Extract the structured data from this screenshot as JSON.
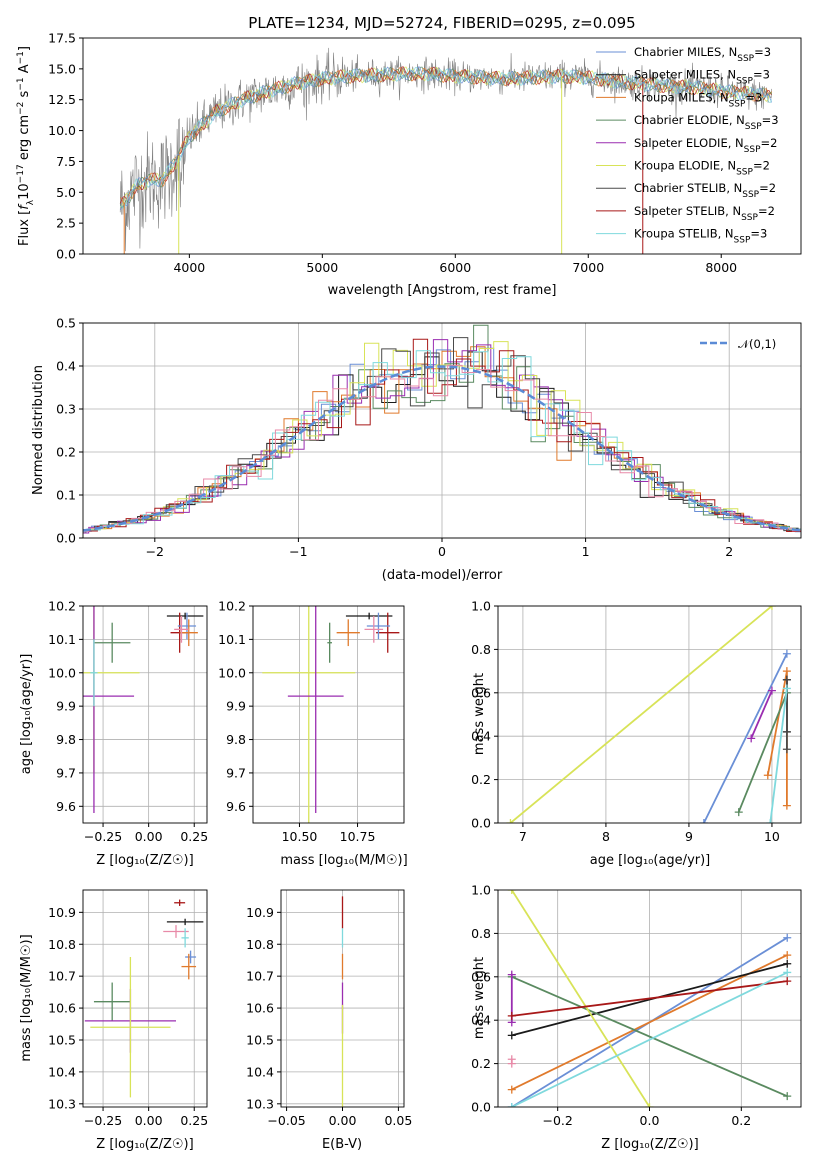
{
  "colors": {
    "Chabrier MILES": "#6a8fd6",
    "Salpeter MILES": "#1a1a1a",
    "Kroupa MILES": "#e07a2c",
    "Chabrier ELODIE": "#5a8a60",
    "Salpeter ELODIE": "#9a2db0",
    "Kroupa ELODIE": "#d8e358",
    "Chabrier STELIB": "#4a4a4a",
    "Salpeter STELIB": "#a81818",
    "Kroupa STELIB": "#7fd9dd",
    "data": "#808080",
    "gauss": "#5b8bd6",
    "pink": "#e88aa8"
  },
  "chart_data": [
    {
      "id": "spectrum",
      "type": "line",
      "title": "PLATE=1234, MJD=52724, FIBERID=0295, z=0.095",
      "xlabel": "wavelength [Angstrom, rest frame]",
      "ylabel": "Flux [f_λ 10^-17 erg cm^-2 s^-1 A^-1]",
      "xlim": [
        3200,
        8600
      ],
      "ylim": [
        0,
        17.5
      ],
      "xticks": [
        "4000",
        "5000",
        "6000",
        "7000",
        "8000"
      ],
      "yticks": [
        "0.0",
        "2.5",
        "5.0",
        "7.5",
        "10.0",
        "12.5",
        "15.0",
        "17.5"
      ],
      "legend": [
        "Chabrier MILES, N_SSP=3",
        "Salpeter MILES, N_SSP=3",
        "Kroupa MILES, N_SSP=3",
        "Chabrier ELODIE, N_SSP=3",
        "Salpeter ELODIE, N_SSP=2",
        "Kroupa ELODIE, N_SSP=2",
        "Chabrier STELIB, N_SSP=2",
        "Salpeter STELIB, N_SSP=2",
        "Kroupa STELIB, N_SSP=3"
      ],
      "legend_placement": "right",
      "continuum": {
        "x": [
          3500,
          3600,
          3700,
          3800,
          3900,
          4000,
          4100,
          4200,
          4300,
          4400,
          4600,
          4800,
          5000,
          5200,
          5400,
          5600,
          5800,
          6000,
          6200,
          6400,
          6600,
          6800,
          7000,
          7200,
          7400,
          7600,
          7800,
          8000,
          8200,
          8400
        ],
        "y": [
          4.0,
          5.5,
          6.0,
          6.0,
          7.5,
          9.5,
          10.5,
          11.5,
          12.0,
          12.5,
          13.2,
          13.8,
          14.2,
          14.4,
          14.5,
          14.6,
          14.6,
          14.4,
          14.3,
          14.2,
          14.3,
          14.4,
          14.3,
          14.0,
          13.8,
          13.6,
          13.5,
          13.2,
          13.0,
          12.8
        ]
      }
    },
    {
      "id": "residuals",
      "type": "histogram",
      "xlabel": "(data-model)/error",
      "ylabel": "Normed distribution",
      "xlim": [
        -2.5,
        2.5
      ],
      "ylim": [
        0,
        0.5
      ],
      "xticks": [
        "−2",
        "−1",
        "0",
        "1",
        "2"
      ],
      "yticks": [
        "0.0",
        "0.1",
        "0.2",
        "0.3",
        "0.4",
        "0.5"
      ],
      "legend": "𝒩(0,1)",
      "legend_placement": "top-right",
      "grid": true
    },
    {
      "id": "age-vs-Z",
      "type": "scatter",
      "xlabel": "Z [log₁₀(Z/Z☉)]",
      "ylabel": "age  [log₁₀(age/yr)]",
      "xlim": [
        -0.36,
        0.32
      ],
      "ylim": [
        9.55,
        10.2
      ],
      "xticks": [
        "−0.25",
        "0.00",
        "0.25"
      ],
      "yticks": [
        "9.6",
        "9.7",
        "9.8",
        "9.9",
        "10.0",
        "10.1",
        "10.2"
      ],
      "grid": true,
      "points": [
        {
          "c": "Salpeter MILES",
          "x": 0.2,
          "y": 10.17,
          "xe": 0.1,
          "ye": 0.01
        },
        {
          "c": "Salpeter STELIB",
          "x": 0.17,
          "y": 10.12,
          "xe": 0.05,
          "ye": 0.06
        },
        {
          "c": "Chabrier MILES",
          "x": 0.21,
          "y": 10.14,
          "xe": 0.05,
          "ye": 0.04
        },
        {
          "c": "Kroupa MILES",
          "x": 0.22,
          "y": 10.12,
          "xe": 0.05,
          "ye": 0.04
        },
        {
          "c": "pink",
          "x": 0.18,
          "y": 10.13,
          "xe": 0.04,
          "ye": 0.04
        },
        {
          "c": "Chabrier ELODIE",
          "x": -0.2,
          "y": 10.09,
          "xe": 0.1,
          "ye": 0.06
        },
        {
          "c": "Kroupa ELODIE",
          "x": -0.3,
          "y": 10.0,
          "xe": 0.25,
          "ye": 0.3
        },
        {
          "c": "Salpeter ELODIE",
          "x": -0.3,
          "y": 9.93,
          "xe": 0.22,
          "ye": 0.35
        },
        {
          "c": "Kroupa STELIB",
          "x": -0.3,
          "y": 10.0,
          "xe": 0.02,
          "ye": 0.1
        }
      ]
    },
    {
      "id": "age-vs-mass",
      "type": "scatter",
      "xlabel": "mass [log₁₀(M/M☉)]",
      "xlim": [
        10.3,
        10.95
      ],
      "ylim": [
        9.55,
        10.2
      ],
      "xticks": [
        "10.50",
        "10.75"
      ],
      "yticks": [
        "9.6",
        "9.7",
        "9.8",
        "9.9",
        "10.0",
        "10.1",
        "10.2"
      ],
      "grid": true,
      "points": [
        {
          "c": "Salpeter MILES",
          "x": 10.8,
          "y": 10.17,
          "xe": 0.1,
          "ye": 0.01
        },
        {
          "c": "Salpeter STELIB",
          "x": 10.88,
          "y": 10.12,
          "xe": 0.05,
          "ye": 0.06
        },
        {
          "c": "Chabrier MILES",
          "x": 10.84,
          "y": 10.14,
          "xe": 0.05,
          "ye": 0.04
        },
        {
          "c": "Kroupa MILES",
          "x": 10.71,
          "y": 10.12,
          "xe": 0.05,
          "ye": 0.04
        },
        {
          "c": "pink",
          "x": 10.82,
          "y": 10.13,
          "xe": 0.04,
          "ye": 0.04
        },
        {
          "c": "Chabrier ELODIE",
          "x": 10.63,
          "y": 10.09,
          "xe": 0.01,
          "ye": 0.06
        },
        {
          "c": "Kroupa ELODIE",
          "x": 10.54,
          "y": 10.0,
          "xe": 0.2,
          "ye": 0.45
        },
        {
          "c": "Salpeter ELODIE",
          "x": 10.57,
          "y": 9.93,
          "xe": 0.12,
          "ye": 0.35
        }
      ]
    },
    {
      "id": "weight-vs-age",
      "type": "line",
      "xlabel": "age  [log₁₀(age/yr)]",
      "ylabel": "mass weight",
      "xlim": [
        6.7,
        10.35
      ],
      "ylim": [
        0,
        1
      ],
      "xticks": [
        "7",
        "8",
        "9",
        "10"
      ],
      "yticks": [
        "0.0",
        "0.2",
        "0.4",
        "0.6",
        "0.8",
        "1.0"
      ],
      "grid": true,
      "series": [
        {
          "c": "Chabrier MILES",
          "x": [
            9.18,
            10.18
          ],
          "y": [
            0.0,
            0.78
          ]
        },
        {
          "c": "Kroupa MILES",
          "x": [
            9.95,
            10.18,
            10.18
          ],
          "y": [
            0.22,
            0.7,
            0.08
          ]
        },
        {
          "c": "Salpeter MILES",
          "x": [
            10.18,
            10.18
          ],
          "y": [
            0.42,
            0.66
          ]
        },
        {
          "c": "Chabrier ELODIE",
          "x": [
            9.6,
            10.18
          ],
          "y": [
            0.05,
            0.6
          ]
        },
        {
          "c": "Salpeter ELODIE",
          "x": [
            9.75,
            10.0
          ],
          "y": [
            0.39,
            0.61
          ]
        },
        {
          "c": "Kroupa ELODIE",
          "x": [
            6.85,
            10.0
          ],
          "y": [
            0.0,
            1.0
          ]
        },
        {
          "c": "Chabrier STELIB",
          "x": [
            10.18,
            10.18
          ],
          "y": [
            0.34,
            0.66
          ]
        },
        {
          "c": "Kroupa STELIB",
          "x": [
            9.98,
            10.18
          ],
          "y": [
            0.0,
            0.62
          ]
        }
      ]
    },
    {
      "id": "mass-vs-Z",
      "type": "scatter",
      "xlabel": "Z [log₁₀(Z/Z☉)]",
      "ylabel": "mass [log₁₀(M/M☉)]",
      "xlim": [
        -0.36,
        0.32
      ],
      "ylim": [
        10.29,
        10.97
      ],
      "xticks": [
        "−0.25",
        "0.00",
        "0.25"
      ],
      "yticks": [
        "10.3",
        "10.4",
        "10.5",
        "10.6",
        "10.7",
        "10.8",
        "10.9"
      ],
      "grid": true,
      "points": [
        {
          "c": "Salpeter MILES",
          "x": 0.2,
          "y": 10.87,
          "xe": 0.1,
          "ye": 0.01
        },
        {
          "c": "Salpeter STELIB",
          "x": 0.17,
          "y": 10.93,
          "xe": 0.03,
          "ye": 0.01
        },
        {
          "c": "Chabrier MILES",
          "x": 0.23,
          "y": 10.76,
          "xe": 0.03,
          "ye": 0.02
        },
        {
          "c": "Kroupa MILES",
          "x": 0.22,
          "y": 10.73,
          "xe": 0.04,
          "ye": 0.04
        },
        {
          "c": "pink",
          "x": 0.15,
          "y": 10.84,
          "xe": 0.07,
          "ye": 0.02
        },
        {
          "c": "Kroupa STELIB",
          "x": 0.2,
          "y": 10.82,
          "xe": 0.02,
          "ye": 0.03
        },
        {
          "c": "Chabrier ELODIE",
          "x": -0.2,
          "y": 10.62,
          "xe": 0.1,
          "ye": 0.06
        },
        {
          "c": "Salpeter ELODIE",
          "x": -0.1,
          "y": 10.56,
          "xe": 0.25,
          "ye": 0.1
        },
        {
          "c": "Kroupa ELODIE",
          "x": -0.1,
          "y": 10.54,
          "xe": 0.22,
          "ye": 0.22
        }
      ]
    },
    {
      "id": "mass-vs-EBV",
      "type": "scatter",
      "xlabel": "E(B-V)",
      "xlim": [
        -0.055,
        0.055
      ],
      "ylim": [
        10.29,
        10.97
      ],
      "xticks": [
        "−0.05",
        "0.00",
        "0.05"
      ],
      "yticks": [
        "10.3",
        "10.4",
        "10.5",
        "10.6",
        "10.7",
        "10.8",
        "10.9"
      ],
      "grid": true,
      "points": [
        {
          "c": "Salpeter STELIB",
          "x": 0.0,
          "y": 10.9,
          "xe": 0.0,
          "ye": 0.05
        },
        {
          "c": "Kroupa MILES",
          "x": 0.0,
          "y": 10.73,
          "xe": 0.0,
          "ye": 0.04
        },
        {
          "c": "Kroupa STELIB",
          "x": 0.0,
          "y": 10.82,
          "xe": 0.0,
          "ye": 0.03
        },
        {
          "c": "Salpeter ELODIE",
          "x": 0.0,
          "y": 10.6,
          "xe": 0.0,
          "ye": 0.08
        },
        {
          "c": "Kroupa ELODIE",
          "x": 0.0,
          "y": 10.45,
          "xe": 0.0,
          "ye": 0.16
        }
      ]
    },
    {
      "id": "weight-vs-Z",
      "type": "line",
      "xlabel": "Z [log₁₀(Z/Z☉)]",
      "ylabel": "mass weight",
      "xlim": [
        -0.33,
        0.33
      ],
      "ylim": [
        0,
        1
      ],
      "xticks": [
        "−0.2",
        "0.0",
        "0.2"
      ],
      "yticks": [
        "0.0",
        "0.2",
        "0.4",
        "0.6",
        "0.8",
        "1.0"
      ],
      "grid": true,
      "series": [
        {
          "c": "Chabrier MILES",
          "x": [
            -0.3,
            0.3
          ],
          "y": [
            0.0,
            0.78
          ]
        },
        {
          "c": "Kroupa MILES",
          "x": [
            -0.3,
            0.3
          ],
          "y": [
            0.08,
            0.7
          ]
        },
        {
          "c": "Salpeter MILES",
          "x": [
            -0.3,
            0.3
          ],
          "y": [
            0.33,
            0.66
          ]
        },
        {
          "c": "Chabrier ELODIE",
          "x": [
            -0.3,
            0.3
          ],
          "y": [
            0.6,
            0.05
          ]
        },
        {
          "c": "Salpeter ELODIE",
          "x": [
            -0.3,
            -0.3
          ],
          "y": [
            0.39,
            0.61
          ]
        },
        {
          "c": "Kroupa ELODIE",
          "x": [
            -0.3,
            0.0
          ],
          "y": [
            1.0,
            0.0
          ]
        },
        {
          "c": "Salpeter STELIB",
          "x": [
            -0.3,
            0.3
          ],
          "y": [
            0.42,
            0.58
          ]
        },
        {
          "c": "Kroupa STELIB",
          "x": [
            -0.3,
            0.3
          ],
          "y": [
            0.0,
            0.62
          ]
        },
        {
          "c": "pink",
          "x": [
            -0.3,
            -0.3
          ],
          "y": [
            0.2,
            0.22
          ]
        }
      ]
    }
  ]
}
